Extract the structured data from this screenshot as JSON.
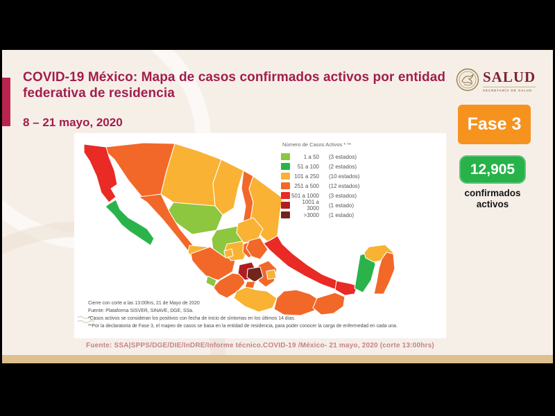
{
  "slide": {
    "title": "COVID-19 México: Mapa de casos confirmados activos por entidad federativa de residencia",
    "date_range": "8 – 21 mayo, 2020",
    "logo": {
      "name": "SALUD",
      "subtitle": "SECRETARÍA DE SALUD"
    },
    "phase_badge": "Fase 3",
    "count_badge": "12,905",
    "count_caption": "confirmados activos",
    "source_line": "Fuente: SSA|SPPS/DGE/DIE/InDRE/Informe técnico.COVID-19 /México- 21 mayo, 2020 (corte 13:00hrs)",
    "colors": {
      "background_cream": "#f6efe8",
      "letterbox_black": "#000000",
      "tan_bar": "#debf8e",
      "title_maroon": "#a21d4d",
      "accent_bar": "#b9244f",
      "phase_orange": "#f6921e",
      "count_green": "#27b24a",
      "source_pink": "#c2838f"
    }
  },
  "map": {
    "legend": {
      "title": "Número de Casos Activos * **",
      "items": [
        {
          "range": "1 a 50",
          "count": "(3 estados)",
          "color": "#8dc63f"
        },
        {
          "range": "51 a 100",
          "count": "(2 estados)",
          "color": "#2bb34b"
        },
        {
          "range": "101 a 250",
          "count": "(10 estados)",
          "color": "#f9b233"
        },
        {
          "range": "251 a 500",
          "count": "(12 estados)",
          "color": "#f26829"
        },
        {
          "range": "501 a 1000",
          "count": "(3 estados)",
          "color": "#e92a25"
        },
        {
          "range": "1001 a 3000",
          "count": "(1 estado)",
          "color": "#b01d20"
        },
        {
          "range": ">3000",
          "count": "(1 estado)",
          "color": "#71251d"
        }
      ]
    },
    "notes": [
      "Cierre con corte a las 13:00hrs, 21 de Mayo de 2020",
      "Fuente: Plataforma SISVER, SINAVE, DGE, SSa.",
      "*Casos activos se consideran los positivos con fecha de inicio de síntomas en los últimos 14 días.",
      "**Por la declaratoria de Fase 3, el mapeo de casos se basa en la entidad de residencia, para poder conocer la carga de enfermedad en cada una."
    ],
    "states": [
      {
        "id": "sonora",
        "name": "Sonora",
        "category": 4
      },
      {
        "id": "chihuahua",
        "name": "Chihuahua",
        "category": 3
      },
      {
        "id": "coahuila",
        "name": "Coahuila",
        "category": 3
      },
      {
        "id": "nl",
        "name": "Nuevo León",
        "category": 4
      },
      {
        "id": "tamaulipas",
        "name": "Tamaulipas",
        "category": 3
      },
      {
        "id": "durango",
        "name": "Durango",
        "category": 1
      },
      {
        "id": "sinaloa",
        "name": "Sinaloa",
        "category": 4
      },
      {
        "id": "zacatecas",
        "name": "Zacatecas",
        "category": 1
      },
      {
        "id": "slp",
        "name": "San Luis Potosí",
        "category": 3
      },
      {
        "id": "nayarit",
        "name": "Nayarit",
        "category": 3
      },
      {
        "id": "jalisco",
        "name": "Jalisco",
        "category": 4
      },
      {
        "id": "guanajuato",
        "name": "Guanajuato",
        "category": 3
      },
      {
        "id": "queretaro",
        "name": "Querétaro",
        "category": 4
      },
      {
        "id": "hidalgo",
        "name": "Hidalgo",
        "category": 4
      },
      {
        "id": "veracruz",
        "name": "Veracruz",
        "category": 5
      },
      {
        "id": "michoacan",
        "name": "Michoacán",
        "category": 4
      },
      {
        "id": "guerrero",
        "name": "Guerrero",
        "category": 3
      },
      {
        "id": "oaxaca",
        "name": "Oaxaca",
        "category": 4
      },
      {
        "id": "chiapas",
        "name": "Chiapas",
        "category": 4
      },
      {
        "id": "tabasco",
        "name": "Tabasco",
        "category": 5
      },
      {
        "id": "campeche",
        "name": "Campeche",
        "category": 2
      },
      {
        "id": "yucatan",
        "name": "Yucatán",
        "category": 3
      },
      {
        "id": "qroo",
        "name": "Quintana Roo",
        "category": 4
      },
      {
        "id": "aguascalientes",
        "name": "Aguascalientes",
        "category": 3
      },
      {
        "id": "colima",
        "name": "Colima",
        "category": 1
      },
      {
        "id": "edomex",
        "name": "Estado de México",
        "category": 6
      },
      {
        "id": "puebla",
        "name": "Puebla",
        "category": 4
      },
      {
        "id": "cdmx",
        "name": "Ciudad de México",
        "category": 7
      },
      {
        "id": "morelos",
        "name": "Morelos",
        "category": 4
      },
      {
        "id": "tlaxcala",
        "name": "Tlaxcala",
        "category": 3
      },
      {
        "id": "bc",
        "name": "Baja California",
        "category": 5
      },
      {
        "id": "bcs",
        "name": "Baja California Sur",
        "category": 2
      }
    ]
  },
  "chart_data": {
    "type": "choropleth_map",
    "title": "Número de Casos Activos * **",
    "subtitle": "COVID-19 México: casos confirmados activos por entidad federativa de residencia, 8 – 21 mayo 2020",
    "total_confirmados_activos": 12905,
    "bins": [
      {
        "range": "1 a 50",
        "estados": 3,
        "color": "#8dc63f"
      },
      {
        "range": "51 a 100",
        "estados": 2,
        "color": "#2bb34b"
      },
      {
        "range": "101 a 250",
        "estados": 10,
        "color": "#f9b233"
      },
      {
        "range": "251 a 500",
        "estados": 12,
        "color": "#f26829"
      },
      {
        "range": "501 a 1000",
        "estados": 3,
        "color": "#e92a25"
      },
      {
        "range": "1001 a 3000",
        "estados": 1,
        "color": "#b01d20"
      },
      {
        "range": ">3000",
        "estados": 1,
        "color": "#71251d"
      }
    ],
    "legend_position": "upper right"
  }
}
